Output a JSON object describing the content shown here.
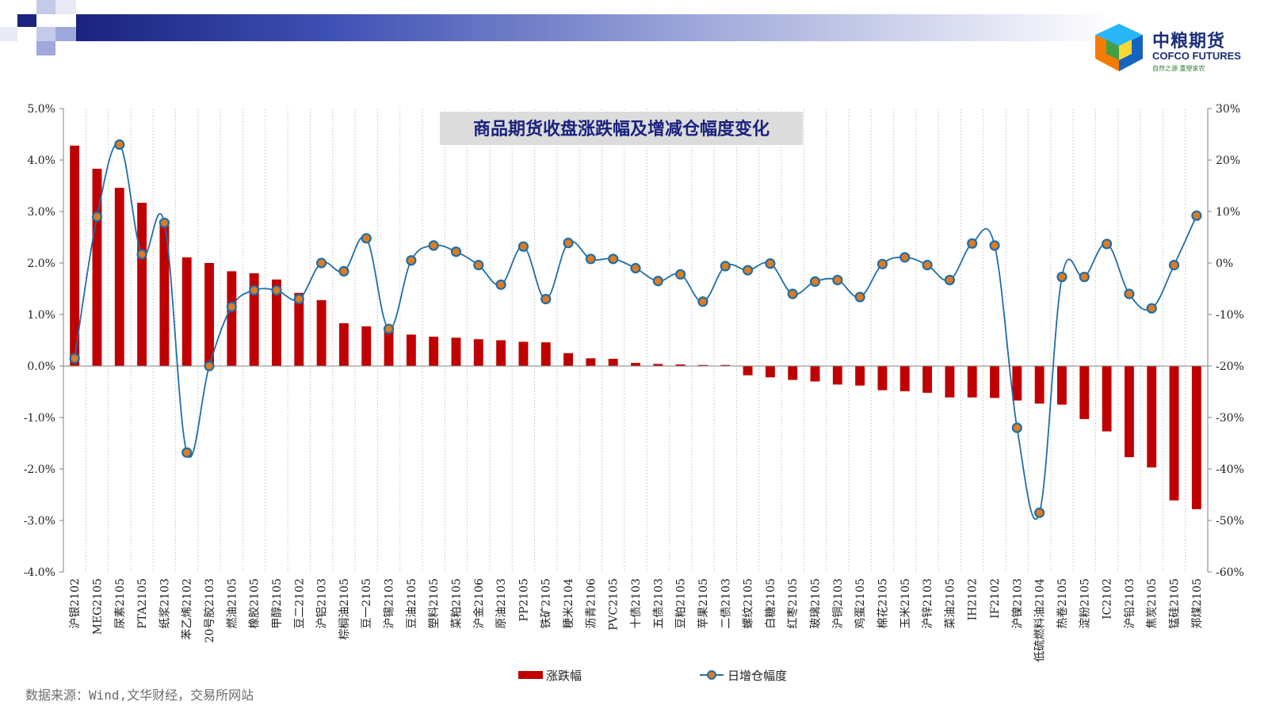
{
  "brand": {
    "name_cn": "中粮期货",
    "name_en": "COFCO FUTURES",
    "slogan": "自然之源  重塑家农",
    "colors": {
      "navy": "#1a237e",
      "logo_text": "#1a2f7a"
    }
  },
  "source_note": "数据来源：Wind,文华财经，交易所网站",
  "chart_data": {
    "type": "bar",
    "title": "商品期货收盘涨跌幅及增减仓幅度变化",
    "categories": [
      "沪银2102",
      "MEG2105",
      "尿素2105",
      "PTA2105",
      "纸浆2103",
      "苯乙烯2102",
      "20号胶2103",
      "燃油2105",
      "橡胶2105",
      "甲醇2105",
      "豆二2102",
      "沪铝2103",
      "棕榈油2105",
      "豆一2105",
      "沪锡2103",
      "豆油2105",
      "塑料2105",
      "菜粕2105",
      "沪金2106",
      "原油2103",
      "PP2105",
      "铁矿2105",
      "粳米2104",
      "沥青2106",
      "PVC2105",
      "十债2103",
      "五债2103",
      "豆粕2105",
      "苹果2105",
      "二债2103",
      "螺纹2105",
      "白糖2105",
      "红枣2105",
      "玻璃2105",
      "沪铜2103",
      "鸡蛋2105",
      "棉花2105",
      "玉米2105",
      "沪锌2103",
      "菜油2105",
      "IH2102",
      "IF2102",
      "沪镍2103",
      "低硫燃料油2104",
      "热卷2105",
      "淀粉2105",
      "IC2102",
      "沪铅2103",
      "焦炭2105",
      "锰硅2105",
      "郑煤2105"
    ],
    "series": [
      {
        "name": "涨跌幅",
        "type": "bar",
        "axis": "left",
        "color": "#c00000",
        "values": [
          4.28,
          3.83,
          3.46,
          3.17,
          2.83,
          2.11,
          2.0,
          1.84,
          1.8,
          1.68,
          1.42,
          1.28,
          0.83,
          0.77,
          0.7,
          0.61,
          0.57,
          0.55,
          0.52,
          0.5,
          0.47,
          0.46,
          0.25,
          0.15,
          0.14,
          0.06,
          0.04,
          0.03,
          0.02,
          0.02,
          -0.18,
          -0.22,
          -0.27,
          -0.3,
          -0.36,
          -0.38,
          -0.47,
          -0.49,
          -0.52,
          -0.61,
          -0.61,
          -0.62,
          -0.67,
          -0.73,
          -0.75,
          -1.03,
          -1.27,
          -1.77,
          -1.97,
          -2.61,
          -2.78
        ]
      },
      {
        "name": "日增仓幅度",
        "type": "line",
        "axis": "right",
        "color": "#1f6ea8",
        "marker_color": "#e07b20",
        "values": [
          -18.5,
          9.0,
          23.0,
          1.7,
          7.8,
          -36.8,
          -20.0,
          -8.5,
          -5.3,
          -5.3,
          -7.0,
          0.0,
          -1.6,
          4.8,
          -12.8,
          0.5,
          3.4,
          2.2,
          -0.4,
          -4.2,
          3.2,
          -7.0,
          3.9,
          0.8,
          0.8,
          -1.0,
          -3.5,
          -2.2,
          -7.5,
          -0.6,
          -1.4,
          -0.1,
          -6.0,
          -3.6,
          -3.3,
          -6.6,
          -0.2,
          1.1,
          -0.4,
          -3.3,
          3.8,
          3.4,
          -32.0,
          -48.5,
          -2.7,
          -2.7,
          3.7,
          -6.0,
          -8.8,
          -0.4,
          9.2
        ]
      }
    ],
    "y_left": {
      "min": -4,
      "max": 5,
      "step": 1,
      "format": "percent_1dp",
      "ticks": [
        "5.0%",
        "4.0%",
        "3.0%",
        "2.0%",
        "1.0%",
        "0.0%",
        "-1.0%",
        "-2.0%",
        "-3.0%",
        "-4.0%"
      ]
    },
    "y_right": {
      "min": -60,
      "max": 30,
      "step": 10,
      "format": "percent_int",
      "ticks": [
        "30%",
        "20%",
        "10%",
        "0%",
        "-10%",
        "-20%",
        "-30%",
        "-40%",
        "-50%",
        "-60%"
      ]
    },
    "grid": "vertical",
    "legend_position": "bottom"
  }
}
